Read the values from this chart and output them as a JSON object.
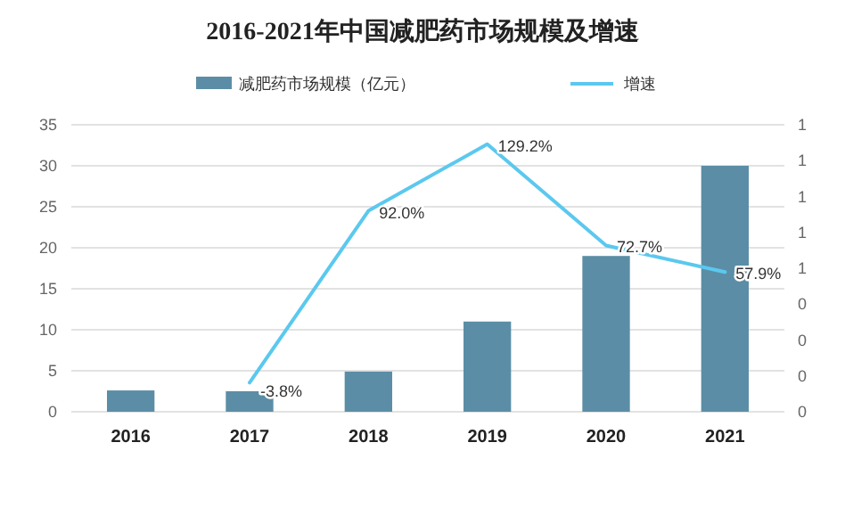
{
  "chart_data": {
    "type": "bar",
    "title": "2016-2021年中国减肥药市场规模及增速",
    "categories": [
      "2016",
      "2017",
      "2018",
      "2019",
      "2020",
      "2021"
    ],
    "series": [
      {
        "name": "减肥药市场规模（亿元）",
        "color": "#5b8ea6",
        "values": [
          2.6,
          2.5,
          4.9,
          11,
          19,
          30
        ]
      },
      {
        "name": "增速",
        "type": "line",
        "axis": "y2",
        "color": "#5bc8ef",
        "values": [
          null,
          -0.038,
          0.92,
          1.292,
          0.727,
          0.579
        ],
        "value_labels": [
          null,
          "-3.8%",
          "92.0%",
          "129.2%",
          "72.7%",
          "57.9%"
        ]
      }
    ],
    "ylim": [
      0,
      35
    ],
    "yticks": [
      0,
      5,
      10,
      15,
      20,
      25,
      30,
      35
    ],
    "y2lim": [
      -0.2,
      1.4
    ],
    "y2ticks": [
      {
        "value": -0.2,
        "label": "0"
      },
      {
        "value": 0,
        "label": "0"
      },
      {
        "value": 0.2,
        "label": "0"
      },
      {
        "value": 0.4,
        "label": "0"
      },
      {
        "value": 0.6,
        "label": "1"
      },
      {
        "value": 0.8,
        "label": "1"
      },
      {
        "value": 1,
        "label": "1"
      },
      {
        "value": 1.2,
        "label": "1"
      },
      {
        "value": 1.4,
        "label": "1"
      }
    ],
    "grid": "y",
    "legend": "top"
  }
}
